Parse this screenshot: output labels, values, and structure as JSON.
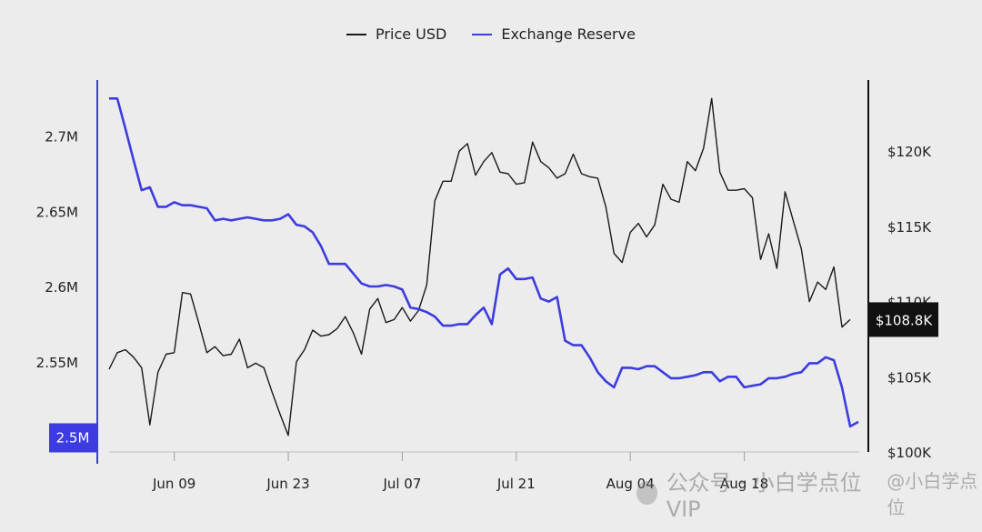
{
  "legend": {
    "items": [
      {
        "label": "Price USD",
        "color": "#1a1a1a"
      },
      {
        "label": "Exchange Reserve",
        "color": "#3c3ce0"
      }
    ]
  },
  "watermark": {
    "text": "公众号 · 小白学点位VIP",
    "handle": "@小白学点位"
  },
  "chart_data": {
    "type": "line",
    "x_ticks": [
      {
        "date": "2025-06-09",
        "label": "Jun 09"
      },
      {
        "date": "2025-06-23",
        "label": "Jun 23"
      },
      {
        "date": "2025-07-07",
        "label": "Jul 07"
      },
      {
        "date": "2025-07-21",
        "label": "Jul 21"
      },
      {
        "date": "2025-08-04",
        "label": "Aug 04"
      },
      {
        "date": "2025-08-18",
        "label": "Aug 18"
      }
    ],
    "x_range": [
      "2025-06-01",
      "2025-08-31"
    ],
    "left_axis": {
      "ylim": [
        2.49,
        2.73
      ],
      "ticks": [
        {
          "value": 2.55,
          "label": "2.55M"
        },
        {
          "value": 2.6,
          "label": "2.6M"
        },
        {
          "value": 2.65,
          "label": "2.65M"
        },
        {
          "value": 2.7,
          "label": "2.7M"
        }
      ],
      "highlight": {
        "value": 2.5,
        "label": "2.5M"
      },
      "color": "#3c3ce0"
    },
    "right_axis": {
      "ylim": [
        100,
        124
      ],
      "ticks": [
        {
          "value": 100,
          "label": "$100K"
        },
        {
          "value": 105,
          "label": "$105K"
        },
        {
          "value": 110,
          "label": "$110K"
        },
        {
          "value": 115,
          "label": "$115K"
        },
        {
          "value": 120,
          "label": "$120K"
        }
      ],
      "highlight": {
        "value": 108.8,
        "label": "$108.8K"
      },
      "color": "#111111"
    },
    "series": [
      {
        "name": "Price USD",
        "axis": "right",
        "color": "#1a1a1a",
        "points": [
          {
            "x": "2025-06-01",
            "y": 105.5
          },
          {
            "x": "2025-06-02",
            "y": 106.6
          },
          {
            "x": "2025-06-03",
            "y": 106.8
          },
          {
            "x": "2025-06-04",
            "y": 106.3
          },
          {
            "x": "2025-06-05",
            "y": 105.6
          },
          {
            "x": "2025-06-06",
            "y": 101.8
          },
          {
            "x": "2025-06-07",
            "y": 105.3
          },
          {
            "x": "2025-06-08",
            "y": 106.5
          },
          {
            "x": "2025-06-09",
            "y": 106.6
          },
          {
            "x": "2025-06-10",
            "y": 110.6
          },
          {
            "x": "2025-06-11",
            "y": 110.5
          },
          {
            "x": "2025-06-12",
            "y": 108.6
          },
          {
            "x": "2025-06-13",
            "y": 106.6
          },
          {
            "x": "2025-06-14",
            "y": 107.0
          },
          {
            "x": "2025-06-15",
            "y": 106.4
          },
          {
            "x": "2025-06-16",
            "y": 106.5
          },
          {
            "x": "2025-06-17",
            "y": 107.5
          },
          {
            "x": "2025-06-18",
            "y": 105.6
          },
          {
            "x": "2025-06-19",
            "y": 105.9
          },
          {
            "x": "2025-06-20",
            "y": 105.6
          },
          {
            "x": "2025-06-21",
            "y": 104.0
          },
          {
            "x": "2025-06-22",
            "y": 102.5
          },
          {
            "x": "2025-06-23",
            "y": 101.1
          },
          {
            "x": "2025-06-24",
            "y": 106.0
          },
          {
            "x": "2025-06-25",
            "y": 106.8
          },
          {
            "x": "2025-06-26",
            "y": 108.1
          },
          {
            "x": "2025-06-27",
            "y": 107.7
          },
          {
            "x": "2025-06-28",
            "y": 107.8
          },
          {
            "x": "2025-06-29",
            "y": 108.2
          },
          {
            "x": "2025-06-30",
            "y": 109.0
          },
          {
            "x": "2025-07-01",
            "y": 107.9
          },
          {
            "x": "2025-07-02",
            "y": 106.5
          },
          {
            "x": "2025-07-03",
            "y": 109.5
          },
          {
            "x": "2025-07-04",
            "y": 110.2
          },
          {
            "x": "2025-07-05",
            "y": 108.6
          },
          {
            "x": "2025-07-06",
            "y": 108.8
          },
          {
            "x": "2025-07-07",
            "y": 109.6
          },
          {
            "x": "2025-07-08",
            "y": 108.7
          },
          {
            "x": "2025-07-09",
            "y": 109.4
          },
          {
            "x": "2025-07-10",
            "y": 111.1
          },
          {
            "x": "2025-07-11",
            "y": 116.7
          },
          {
            "x": "2025-07-12",
            "y": 118.0
          },
          {
            "x": "2025-07-13",
            "y": 118.0
          },
          {
            "x": "2025-07-14",
            "y": 120.0
          },
          {
            "x": "2025-07-15",
            "y": 120.5
          },
          {
            "x": "2025-07-16",
            "y": 118.4
          },
          {
            "x": "2025-07-17",
            "y": 119.3
          },
          {
            "x": "2025-07-18",
            "y": 119.9
          },
          {
            "x": "2025-07-19",
            "y": 118.6
          },
          {
            "x": "2025-07-20",
            "y": 118.5
          },
          {
            "x": "2025-07-21",
            "y": 117.8
          },
          {
            "x": "2025-07-22",
            "y": 117.9
          },
          {
            "x": "2025-07-23",
            "y": 120.6
          },
          {
            "x": "2025-07-24",
            "y": 119.3
          },
          {
            "x": "2025-07-25",
            "y": 118.9
          },
          {
            "x": "2025-07-26",
            "y": 118.2
          },
          {
            "x": "2025-07-27",
            "y": 118.5
          },
          {
            "x": "2025-07-28",
            "y": 119.8
          },
          {
            "x": "2025-07-29",
            "y": 118.5
          },
          {
            "x": "2025-07-30",
            "y": 118.3
          },
          {
            "x": "2025-07-31",
            "y": 118.2
          },
          {
            "x": "2025-08-01",
            "y": 116.3
          },
          {
            "x": "2025-08-02",
            "y": 113.2
          },
          {
            "x": "2025-08-03",
            "y": 112.6
          },
          {
            "x": "2025-08-04",
            "y": 114.6
          },
          {
            "x": "2025-08-05",
            "y": 115.2
          },
          {
            "x": "2025-08-06",
            "y": 114.3
          },
          {
            "x": "2025-08-07",
            "y": 115.1
          },
          {
            "x": "2025-08-08",
            "y": 117.8
          },
          {
            "x": "2025-08-09",
            "y": 116.8
          },
          {
            "x": "2025-08-10",
            "y": 116.6
          },
          {
            "x": "2025-08-11",
            "y": 119.3
          },
          {
            "x": "2025-08-12",
            "y": 118.7
          },
          {
            "x": "2025-08-13",
            "y": 120.2
          },
          {
            "x": "2025-08-14",
            "y": 123.5
          },
          {
            "x": "2025-08-15",
            "y": 118.6
          },
          {
            "x": "2025-08-16",
            "y": 117.4
          },
          {
            "x": "2025-08-17",
            "y": 117.4
          },
          {
            "x": "2025-08-18",
            "y": 117.5
          },
          {
            "x": "2025-08-19",
            "y": 116.9
          },
          {
            "x": "2025-08-20",
            "y": 112.8
          },
          {
            "x": "2025-08-21",
            "y": 114.5
          },
          {
            "x": "2025-08-22",
            "y": 112.2
          },
          {
            "x": "2025-08-23",
            "y": 117.3
          },
          {
            "x": "2025-08-24",
            "y": 115.4
          },
          {
            "x": "2025-08-25",
            "y": 113.5
          },
          {
            "x": "2025-08-26",
            "y": 110.0
          },
          {
            "x": "2025-08-27",
            "y": 111.3
          },
          {
            "x": "2025-08-28",
            "y": 110.8
          },
          {
            "x": "2025-08-29",
            "y": 112.3
          },
          {
            "x": "2025-08-30",
            "y": 108.3
          },
          {
            "x": "2025-08-31",
            "y": 108.8
          }
        ]
      },
      {
        "name": "Exchange Reserve",
        "axis": "left",
        "color": "#3c3ce0",
        "points": [
          {
            "x": "2025-06-01",
            "y": 2.725
          },
          {
            "x": "2025-06-02",
            "y": 2.725
          },
          {
            "x": "2025-06-03",
            "y": 2.705
          },
          {
            "x": "2025-06-04",
            "y": 2.684
          },
          {
            "x": "2025-06-05",
            "y": 2.664
          },
          {
            "x": "2025-06-06",
            "y": 2.666
          },
          {
            "x": "2025-06-07",
            "y": 2.653
          },
          {
            "x": "2025-06-08",
            "y": 2.653
          },
          {
            "x": "2025-06-09",
            "y": 2.656
          },
          {
            "x": "2025-06-10",
            "y": 2.654
          },
          {
            "x": "2025-06-11",
            "y": 2.654
          },
          {
            "x": "2025-06-12",
            "y": 2.653
          },
          {
            "x": "2025-06-13",
            "y": 2.652
          },
          {
            "x": "2025-06-14",
            "y": 2.644
          },
          {
            "x": "2025-06-15",
            "y": 2.645
          },
          {
            "x": "2025-06-16",
            "y": 2.644
          },
          {
            "x": "2025-06-17",
            "y": 2.645
          },
          {
            "x": "2025-06-18",
            "y": 2.646
          },
          {
            "x": "2025-06-19",
            "y": 2.645
          },
          {
            "x": "2025-06-20",
            "y": 2.644
          },
          {
            "x": "2025-06-21",
            "y": 2.644
          },
          {
            "x": "2025-06-22",
            "y": 2.645
          },
          {
            "x": "2025-06-23",
            "y": 2.648
          },
          {
            "x": "2025-06-24",
            "y": 2.641
          },
          {
            "x": "2025-06-25",
            "y": 2.64
          },
          {
            "x": "2025-06-26",
            "y": 2.636
          },
          {
            "x": "2025-06-27",
            "y": 2.627
          },
          {
            "x": "2025-06-28",
            "y": 2.615
          },
          {
            "x": "2025-06-29",
            "y": 2.615
          },
          {
            "x": "2025-06-30",
            "y": 2.615
          },
          {
            "x": "2025-07-02",
            "y": 2.602
          },
          {
            "x": "2025-07-03",
            "y": 2.6
          },
          {
            "x": "2025-07-04",
            "y": 2.6
          },
          {
            "x": "2025-07-05",
            "y": 2.601
          },
          {
            "x": "2025-07-06",
            "y": 2.6
          },
          {
            "x": "2025-07-07",
            "y": 2.598
          },
          {
            "x": "2025-07-08",
            "y": 2.586
          },
          {
            "x": "2025-07-09",
            "y": 2.585
          },
          {
            "x": "2025-07-10",
            "y": 2.583
          },
          {
            "x": "2025-07-11",
            "y": 2.58
          },
          {
            "x": "2025-07-12",
            "y": 2.574
          },
          {
            "x": "2025-07-13",
            "y": 2.574
          },
          {
            "x": "2025-07-14",
            "y": 2.575
          },
          {
            "x": "2025-07-15",
            "y": 2.575
          },
          {
            "x": "2025-07-16",
            "y": 2.581
          },
          {
            "x": "2025-07-17",
            "y": 2.586
          },
          {
            "x": "2025-07-18",
            "y": 2.575
          },
          {
            "x": "2025-07-19",
            "y": 2.608
          },
          {
            "x": "2025-07-20",
            "y": 2.612
          },
          {
            "x": "2025-07-21",
            "y": 2.605
          },
          {
            "x": "2025-07-22",
            "y": 2.605
          },
          {
            "x": "2025-07-23",
            "y": 2.606
          },
          {
            "x": "2025-07-24",
            "y": 2.592
          },
          {
            "x": "2025-07-25",
            "y": 2.59
          },
          {
            "x": "2025-07-26",
            "y": 2.593
          },
          {
            "x": "2025-07-27",
            "y": 2.564
          },
          {
            "x": "2025-07-28",
            "y": 2.561
          },
          {
            "x": "2025-07-29",
            "y": 2.561
          },
          {
            "x": "2025-07-30",
            "y": 2.553
          },
          {
            "x": "2025-07-31",
            "y": 2.543
          },
          {
            "x": "2025-08-01",
            "y": 2.537
          },
          {
            "x": "2025-08-02",
            "y": 2.533
          },
          {
            "x": "2025-08-03",
            "y": 2.546
          },
          {
            "x": "2025-08-04",
            "y": 2.546
          },
          {
            "x": "2025-08-05",
            "y": 2.545
          },
          {
            "x": "2025-08-06",
            "y": 2.547
          },
          {
            "x": "2025-08-07",
            "y": 2.547
          },
          {
            "x": "2025-08-08",
            "y": 2.543
          },
          {
            "x": "2025-08-09",
            "y": 2.539
          },
          {
            "x": "2025-08-10",
            "y": 2.539
          },
          {
            "x": "2025-08-11",
            "y": 2.54
          },
          {
            "x": "2025-08-12",
            "y": 2.541
          },
          {
            "x": "2025-08-13",
            "y": 2.543
          },
          {
            "x": "2025-08-14",
            "y": 2.543
          },
          {
            "x": "2025-08-15",
            "y": 2.537
          },
          {
            "x": "2025-08-16",
            "y": 2.54
          },
          {
            "x": "2025-08-17",
            "y": 2.54
          },
          {
            "x": "2025-08-18",
            "y": 2.533
          },
          {
            "x": "2025-08-19",
            "y": 2.534
          },
          {
            "x": "2025-08-20",
            "y": 2.535
          },
          {
            "x": "2025-08-21",
            "y": 2.539
          },
          {
            "x": "2025-08-22",
            "y": 2.539
          },
          {
            "x": "2025-08-23",
            "y": 2.54
          },
          {
            "x": "2025-08-24",
            "y": 2.542
          },
          {
            "x": "2025-08-25",
            "y": 2.543
          },
          {
            "x": "2025-08-26",
            "y": 2.549
          },
          {
            "x": "2025-08-27",
            "y": 2.549
          },
          {
            "x": "2025-08-28",
            "y": 2.553
          },
          {
            "x": "2025-08-29",
            "y": 2.551
          },
          {
            "x": "2025-08-30",
            "y": 2.533
          },
          {
            "x": "2025-08-31",
            "y": 2.507
          },
          {
            "x": "2025-09-01",
            "y": 2.51
          }
        ]
      }
    ],
    "grid": false,
    "legend_position": "top"
  }
}
